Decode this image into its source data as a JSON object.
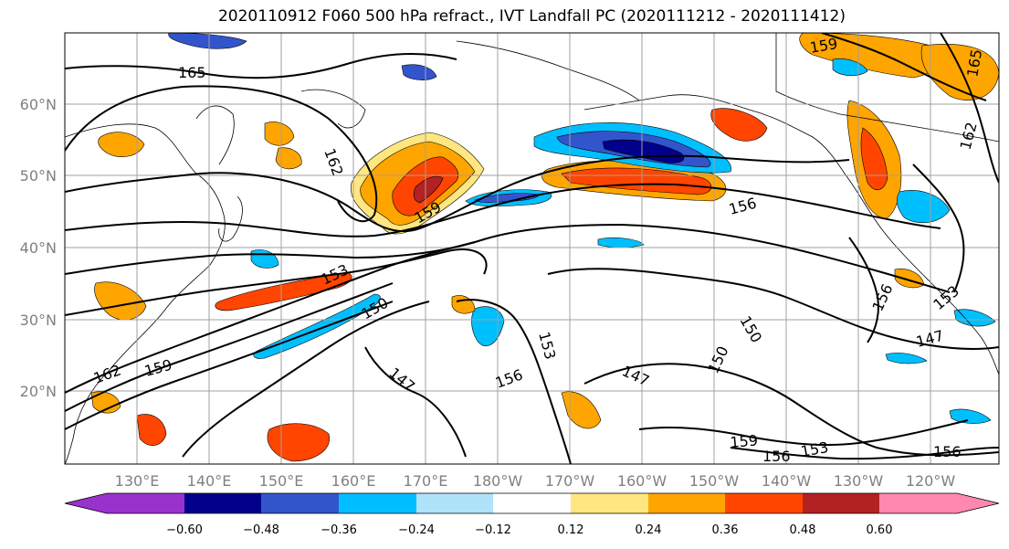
{
  "title": "2020110912 F060 500 hPa refract., IVT Landfall PC (2020111212 - 2020111412)",
  "lat_labels": [
    "60°N",
    "50°N",
    "40°N",
    "30°N",
    "20°N"
  ],
  "lon_labels": [
    "130°E",
    "140°E",
    "150°E",
    "160°E",
    "170°E",
    "180°W",
    "170°W",
    "160°W",
    "150°W",
    "140°W",
    "130°W",
    "120°W"
  ],
  "contour_labels": [
    "165",
    "162",
    "159",
    "156",
    "153",
    "150",
    "147",
    "156",
    "153",
    "150",
    "147",
    "159",
    "162",
    "165",
    "162",
    "159",
    "156",
    "153",
    "150",
    "147",
    "156",
    "153",
    "159",
    "156"
  ],
  "colorbar": {
    "colors": [
      "#9932cc",
      "#00008b",
      "#3355cc",
      "#00bfff",
      "#aee3fa",
      "#ffffff",
      "#ffe680",
      "#ffa500",
      "#ff4500",
      "#b22222",
      "#ff88b0"
    ],
    "ticks": [
      "−0.60",
      "−0.48",
      "−0.36",
      "−0.24",
      "−0.12",
      "0.12",
      "0.24",
      "0.36",
      "0.48",
      "0.60"
    ]
  },
  "colors": {
    "grid": "#a0a0a0",
    "axis_label": "#808080"
  }
}
